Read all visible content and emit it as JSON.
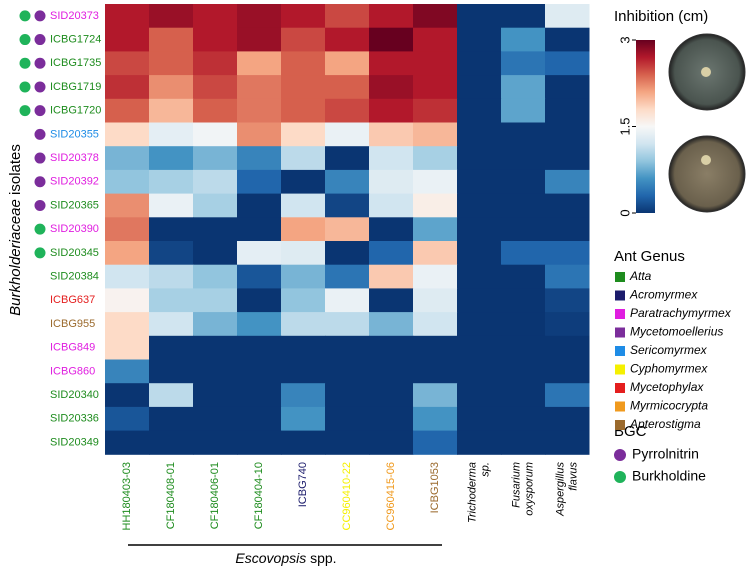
{
  "chart_data": {
    "type": "heatmap",
    "ylabel": [
      "Burkholderiaceae",
      "isolates"
    ],
    "group_label": [
      "Escovopsis",
      "spp."
    ],
    "rows": [
      {
        "label": "SID20373",
        "genus": 2,
        "bgc": [
          1,
          0
        ]
      },
      {
        "label": "ICBG1724",
        "genus": 0,
        "bgc": [
          1,
          0
        ]
      },
      {
        "label": "ICBG1735",
        "genus": 0,
        "bgc": [
          1,
          0
        ]
      },
      {
        "label": "ICBG1719",
        "genus": 0,
        "bgc": [
          1,
          0
        ]
      },
      {
        "label": "ICBG1720",
        "genus": 0,
        "bgc": [
          1,
          0
        ]
      },
      {
        "label": "SID20355",
        "genus": 4,
        "bgc": [
          0
        ]
      },
      {
        "label": "SID20378",
        "genus": 2,
        "bgc": [
          0
        ]
      },
      {
        "label": "SID20392",
        "genus": 2,
        "bgc": [
          0
        ]
      },
      {
        "label": "SID20365",
        "genus": 0,
        "bgc": [
          0
        ]
      },
      {
        "label": "SID20390",
        "genus": 2,
        "bgc": [
          1
        ]
      },
      {
        "label": "SID20345",
        "genus": 0,
        "bgc": [
          1
        ]
      },
      {
        "label": "SID20384",
        "genus": 0,
        "bgc": []
      },
      {
        "label": "ICBG637",
        "genus": 6,
        "bgc": []
      },
      {
        "label": "ICBG955",
        "genus": 8,
        "bgc": []
      },
      {
        "label": "ICBG849",
        "genus": 2,
        "bgc": []
      },
      {
        "label": "ICBG860",
        "genus": 2,
        "bgc": []
      },
      {
        "label": "SID20340",
        "genus": 0,
        "bgc": []
      },
      {
        "label": "SID20336",
        "genus": 0,
        "bgc": []
      },
      {
        "label": "SID20349",
        "genus": 0,
        "bgc": []
      }
    ],
    "columns": [
      {
        "label": [
          "HH180403-03"
        ],
        "genus": 0,
        "group": true
      },
      {
        "label": [
          "CF180408-01"
        ],
        "genus": 0,
        "group": true
      },
      {
        "label": [
          "CF180406-01"
        ],
        "genus": 0,
        "group": true
      },
      {
        "label": [
          "CF180404-10"
        ],
        "genus": 0,
        "group": true
      },
      {
        "label": [
          "ICBG740"
        ],
        "genus": 1,
        "group": true
      },
      {
        "label": [
          "CC960410-22"
        ],
        "genus": 5,
        "group": true
      },
      {
        "label": [
          "CC960415-06"
        ],
        "genus": 7,
        "group": true
      },
      {
        "label": [
          "ICBG1053"
        ],
        "genus": 8,
        "group": true
      },
      {
        "label": [
          "Trichoderma",
          "sp."
        ],
        "genus": null,
        "group": false
      },
      {
        "label": [
          "Fusarium",
          "oxysporum"
        ],
        "genus": null,
        "group": false
      },
      {
        "label": [
          "Aspergillus",
          "flavus"
        ],
        "genus": null,
        "group": false
      }
    ],
    "values": [
      [
        2.7,
        2.8,
        2.7,
        2.8,
        2.7,
        2.5,
        2.7,
        2.9,
        0,
        0,
        1.3
      ],
      [
        2.7,
        2.4,
        2.7,
        2.8,
        2.5,
        2.7,
        3.0,
        2.7,
        0,
        0.6,
        0
      ],
      [
        2.5,
        2.4,
        2.6,
        2.1,
        2.4,
        2.1,
        2.7,
        2.7,
        0,
        0.4,
        0.3
      ],
      [
        2.6,
        2.2,
        2.5,
        2.3,
        2.4,
        2.4,
        2.8,
        2.7,
        0,
        0.7,
        0
      ],
      [
        2.4,
        2.0,
        2.4,
        2.3,
        2.4,
        2.5,
        2.7,
        2.6,
        0,
        0.7,
        0
      ],
      [
        1.8,
        1.35,
        1.45,
        2.2,
        1.8,
        1.4,
        1.9,
        2.0,
        0,
        0,
        0
      ],
      [
        0.8,
        0.6,
        0.8,
        0.5,
        1.1,
        0,
        1.2,
        1.0,
        0,
        0,
        0
      ],
      [
        0.9,
        1.0,
        1.1,
        0.3,
        0,
        0.5,
        1.3,
        1.4,
        0,
        0,
        0.5
      ],
      [
        2.2,
        1.4,
        1.0,
        0,
        1.2,
        0.1,
        1.2,
        1.6,
        0,
        0,
        0
      ],
      [
        2.3,
        0,
        0,
        0,
        2.1,
        2.0,
        0,
        0.7,
        0,
        0,
        0
      ],
      [
        2.1,
        0.1,
        0,
        1.35,
        1.3,
        0,
        0.3,
        1.9,
        0,
        0.3,
        0.3
      ],
      [
        1.2,
        1.1,
        0.9,
        0.2,
        0.8,
        0.4,
        1.9,
        1.4,
        0,
        0,
        0.4
      ],
      [
        1.55,
        1.0,
        1.0,
        0,
        0.9,
        1.4,
        0,
        1.3,
        0,
        0,
        0.1
      ],
      [
        1.8,
        1.2,
        0.8,
        0.6,
        1.1,
        1.1,
        0.8,
        1.2,
        0,
        0,
        0.05
      ],
      [
        1.8,
        0,
        0,
        0,
        0,
        0,
        0,
        0,
        0,
        0,
        0
      ],
      [
        0.5,
        0,
        0,
        0,
        0,
        0,
        0,
        0,
        0,
        0,
        0
      ],
      [
        0,
        1.1,
        0,
        0,
        0.5,
        0,
        0,
        0.8,
        0,
        0,
        0.4
      ],
      [
        0.2,
        0,
        0,
        0,
        0.6,
        0,
        0,
        0.6,
        0,
        0,
        0
      ],
      [
        0,
        0,
        0,
        0,
        0,
        0,
        0,
        0.3,
        0,
        0,
        0
      ]
    ],
    "zlim": [
      0,
      3
    ],
    "colorbar_title": "Inhibition (cm)",
    "colorbar_ticks": [
      0,
      1.5,
      3
    ],
    "colormap": [
      "#0a3572",
      "#2166ac",
      "#4393c3",
      "#92c5de",
      "#d1e5f0",
      "#f7f7f7",
      "#fddbc7",
      "#f4a582",
      "#d6604d",
      "#b2182b",
      "#67001f"
    ],
    "ant_genus_title": "Ant Genus",
    "ant_genus": [
      {
        "name": "Atta",
        "color": "#1e8c1e"
      },
      {
        "name": "Acromyrmex",
        "color": "#1c1c6c"
      },
      {
        "name": "Paratrachymyrmex",
        "color": "#e01ee0"
      },
      {
        "name": "Mycetomoellerius",
        "color": "#7b2d9b"
      },
      {
        "name": "Sericomyrmex",
        "color": "#1e8ce6"
      },
      {
        "name": "Cyphomyrmex",
        "color": "#f5f000"
      },
      {
        "name": "Mycetophylax",
        "color": "#e41e1e"
      },
      {
        "name": "Myrmicocrypta",
        "color": "#f09a1e"
      },
      {
        "name": "Apterostigma",
        "color": "#9b6a2d"
      }
    ],
    "bgc_title": "BGC",
    "bgc": [
      {
        "name": "Pyrrolnitrin",
        "color": "#7b2d9b"
      },
      {
        "name": "Burkholdine",
        "color": "#1fb35a"
      }
    ]
  }
}
